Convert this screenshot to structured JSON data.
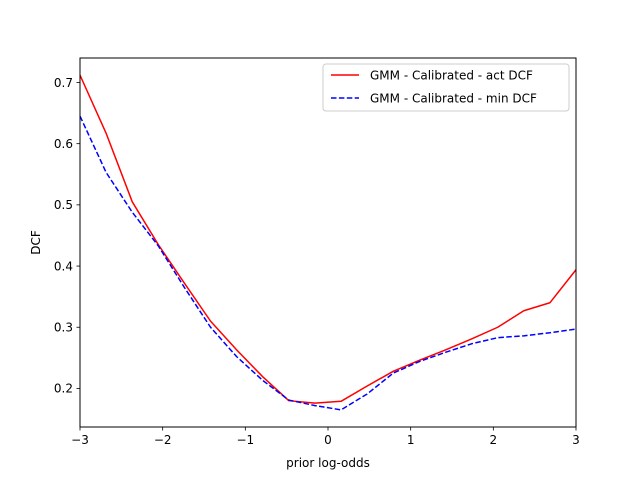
{
  "chart_data": {
    "type": "line",
    "xlabel": "prior log-odds",
    "ylabel": "DCF",
    "xlim": [
      -3,
      3
    ],
    "ylim": [
      0.137,
      0.74
    ],
    "xticks": [
      -3,
      -2,
      -1,
      0,
      1,
      2,
      3
    ],
    "xtick_labels": [
      "−3",
      "−2",
      "−1",
      "0",
      "1",
      "2",
      "3"
    ],
    "yticks": [
      0.2,
      0.3,
      0.4,
      0.5,
      0.6,
      0.7
    ],
    "ytick_labels": [
      "0.2",
      "0.3",
      "0.4",
      "0.5",
      "0.6",
      "0.7"
    ],
    "grid": false,
    "legend_position": "top-right",
    "x": [
      -3.0,
      -2.684,
      -2.368,
      -2.053,
      -1.737,
      -1.421,
      -1.105,
      -0.789,
      -0.474,
      -0.158,
      0.158,
      0.474,
      0.789,
      1.105,
      1.421,
      1.737,
      2.053,
      2.368,
      2.684,
      3.0
    ],
    "series": [
      {
        "name": "GMM - Calibrated - act DCF",
        "color": "#ff0000",
        "style": "solid",
        "values": [
          0.712,
          0.617,
          0.505,
          0.435,
          0.372,
          0.31,
          0.263,
          0.219,
          0.18,
          0.176,
          0.179,
          0.204,
          0.228,
          0.246,
          0.263,
          0.281,
          0.3,
          0.327,
          0.34,
          0.394
        ]
      },
      {
        "name": "GMM - Calibrated - min DCF",
        "color": "#0000ff",
        "style": "dashed",
        "values": [
          0.645,
          0.553,
          0.488,
          0.433,
          0.365,
          0.3,
          0.252,
          0.213,
          0.181,
          0.172,
          0.165,
          0.191,
          0.225,
          0.244,
          0.259,
          0.273,
          0.283,
          0.286,
          0.291,
          0.297
        ]
      }
    ]
  }
}
